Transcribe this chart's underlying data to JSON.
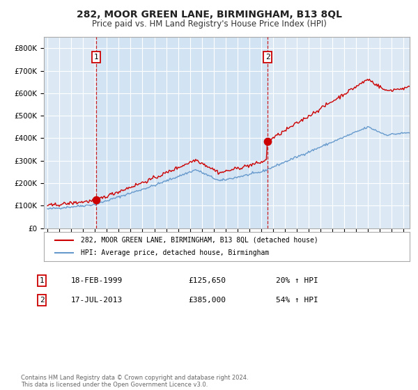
{
  "title": "282, MOOR GREEN LANE, BIRMINGHAM, B13 8QL",
  "subtitle": "Price paid vs. HM Land Registry's House Price Index (HPI)",
  "ylim": [
    0,
    850000
  ],
  "xlim_start": 1994.7,
  "xlim_end": 2025.5,
  "background_color": "#ffffff",
  "plot_bg_color": "#dce9f5",
  "grid_color": "#ffffff",
  "sale1_date": 1999.12,
  "sale1_price": 125650,
  "sale2_date": 2013.54,
  "sale2_price": 385000,
  "red_line_color": "#cc0000",
  "blue_line_color": "#6699cc",
  "legend_label_red": "282, MOOR GREEN LANE, BIRMINGHAM, B13 8QL (detached house)",
  "legend_label_blue": "HPI: Average price, detached house, Birmingham",
  "footnote": "Contains HM Land Registry data © Crown copyright and database right 2024.\nThis data is licensed under the Open Government Licence v3.0.",
  "table_row1": [
    "1",
    "18-FEB-1999",
    "£125,650",
    "20% ↑ HPI"
  ],
  "table_row2": [
    "2",
    "17-JUL-2013",
    "£385,000",
    "54% ↑ HPI"
  ]
}
